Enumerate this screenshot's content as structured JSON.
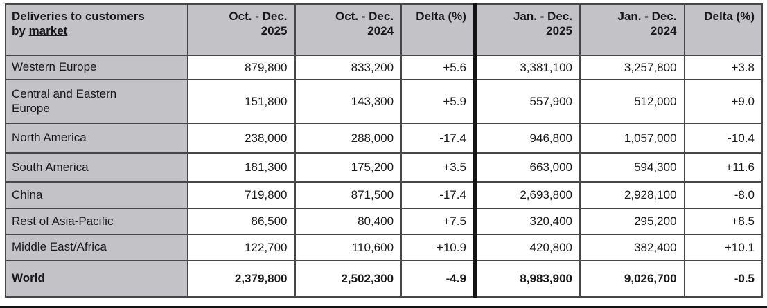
{
  "chart_data": {
    "type": "table",
    "title": "Deliveries to customers by market",
    "header": {
      "title_line1": "Deliveries to customers",
      "title_line2_prefix": "by ",
      "title_line2_underline": "market"
    },
    "columns": [
      {
        "line1": "Oct. - Dec.",
        "line2": "2025"
      },
      {
        "line1": "Oct. - Dec.",
        "line2": "2024"
      },
      {
        "label": "Delta (%)"
      },
      {
        "line1": "Jan. - Dec.",
        "line2": "2025"
      },
      {
        "line1": "Jan. - Dec.",
        "line2": "2024"
      },
      {
        "label": "Delta (%)"
      }
    ],
    "rows": [
      {
        "market": "Western Europe",
        "values": [
          "879,800",
          "833,200",
          "+5.6",
          "3,381,100",
          "3,257,800",
          "+3.8"
        ]
      },
      {
        "market": "Central and Eastern Europe",
        "values": [
          "151,800",
          "143,300",
          "+5.9",
          "557,900",
          "512,000",
          "+9.0"
        ]
      },
      {
        "market": "North America",
        "values": [
          "238,000",
          "288,000",
          "-17.4",
          "946,800",
          "1,057,000",
          "-10.4"
        ]
      },
      {
        "market": "South America",
        "values": [
          "181,300",
          "175,200",
          "+3.5",
          "663,000",
          "594,300",
          "+11.6"
        ]
      },
      {
        "market": "China",
        "values": [
          "719,800",
          "871,500",
          "-17.4",
          "2,693,800",
          "2,928,100",
          "-8.0"
        ]
      },
      {
        "market": "Rest of Asia-Pacific",
        "values": [
          "86,500",
          "80,400",
          "+7.5",
          "320,400",
          "295,200",
          "+8.5"
        ]
      },
      {
        "market": "Middle East/Africa",
        "values": [
          "122,700",
          "110,600",
          "+10.9",
          "420,800",
          "382,400",
          "+10.1"
        ]
      }
    ],
    "total_row": {
      "market": "World",
      "values": [
        "2,379,800",
        "2,502,300",
        "-4.9",
        "8,983,900",
        "9,026,700",
        "-0.5"
      ]
    }
  },
  "colors": {
    "cell_gray": "#c3c3c7",
    "border": "#47474a",
    "divider": "#141414",
    "text": "#17181a",
    "data_cell_bg": "#ffffff"
  }
}
